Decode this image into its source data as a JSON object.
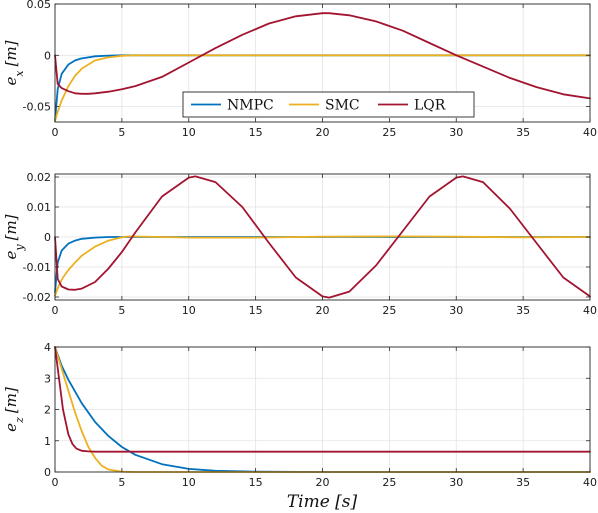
{
  "figure": {
    "xlabel": "Time [s]",
    "colors": {
      "NMPC": "#0072BD",
      "SMC": "#EDB120",
      "LQR": "#A2142F"
    }
  },
  "chart_data": [
    {
      "type": "line",
      "ylabel": "e_x [m]",
      "xlim": [
        0,
        40
      ],
      "ylim": [
        -0.065,
        0.05
      ],
      "yticks": [
        -0.05,
        0,
        0.05
      ],
      "ytick_labels": [
        "-0.05",
        "0",
        "0.05"
      ],
      "xticks": [
        0,
        5,
        10,
        15,
        20,
        25,
        30,
        35,
        40
      ],
      "grid": true,
      "legend": {
        "position": "bottom-center",
        "entries": [
          "NMPC",
          "SMC",
          "LQR"
        ]
      },
      "series": [
        {
          "name": "NMPC",
          "x": [
            0,
            0.2,
            0.5,
            1,
            1.5,
            2,
            3,
            4,
            5,
            40
          ],
          "y": [
            -0.064,
            -0.033,
            -0.018,
            -0.009,
            -0.005,
            -0.003,
            -0.001,
            -0.0003,
            0,
            0
          ]
        },
        {
          "name": "SMC",
          "x": [
            0,
            0.2,
            0.5,
            1,
            1.5,
            2,
            3,
            4,
            5,
            6,
            40
          ],
          "y": [
            -0.064,
            -0.055,
            -0.044,
            -0.03,
            -0.02,
            -0.013,
            -0.005,
            -0.002,
            -0.0005,
            0,
            0
          ]
        },
        {
          "name": "LQR",
          "x": [
            0,
            0.2,
            0.5,
            1,
            1.5,
            2,
            2.5,
            3,
            4,
            5,
            6,
            8,
            10,
            12,
            14,
            16,
            18,
            20,
            20.5,
            22,
            24,
            26,
            28,
            30,
            32,
            34,
            36,
            38,
            40
          ],
          "y": [
            0,
            -0.028,
            -0.032,
            -0.035,
            -0.037,
            -0.0375,
            -0.0375,
            -0.037,
            -0.0355,
            -0.033,
            -0.03,
            -0.021,
            -0.007,
            0.007,
            0.02,
            0.031,
            0.038,
            0.041,
            0.041,
            0.039,
            0.033,
            0.024,
            0.012,
            0.0,
            -0.011,
            -0.022,
            -0.031,
            -0.038,
            -0.042
          ]
        }
      ]
    },
    {
      "type": "line",
      "ylabel": "e_y [m]",
      "xlim": [
        0,
        40
      ],
      "ylim": [
        -0.021,
        0.021
      ],
      "yticks": [
        -0.02,
        -0.01,
        0,
        0.01,
        0.02
      ],
      "ytick_labels": [
        "-0.02",
        "-0.01",
        "0",
        "0.01",
        "0.02"
      ],
      "xticks": [
        0,
        5,
        10,
        15,
        20,
        25,
        30,
        35,
        40
      ],
      "grid": true,
      "series": [
        {
          "name": "NMPC",
          "x": [
            0,
            0.2,
            0.5,
            1,
            1.5,
            2,
            3,
            4,
            5,
            40
          ],
          "y": [
            -0.0185,
            -0.0085,
            -0.0045,
            -0.0022,
            -0.0012,
            -0.0006,
            -0.0002,
            0,
            0,
            0
          ]
        },
        {
          "name": "SMC",
          "x": [
            0,
            0.3,
            0.6,
            1,
            1.5,
            2,
            3,
            4,
            5,
            5.5,
            8,
            10,
            15,
            20,
            25,
            30,
            35,
            40
          ],
          "y": [
            -0.0195,
            -0.016,
            -0.0135,
            -0.011,
            -0.0085,
            -0.0062,
            -0.0032,
            -0.0012,
            -0.0001,
            0.0002,
            0,
            -0.0002,
            -0.0002,
            0.0001,
            0.0002,
            0.0001,
            -0.0001,
            0
          ]
        },
        {
          "name": "LQR",
          "x": [
            0,
            0.2,
            0.5,
            1,
            1.5,
            2,
            3,
            4,
            5,
            6,
            8,
            10,
            10.5,
            12,
            14,
            16,
            18,
            20,
            20.5,
            22,
            24,
            26,
            28,
            30,
            30.5,
            32,
            34,
            36,
            38,
            40
          ],
          "y": [
            0,
            -0.014,
            -0.0165,
            -0.0175,
            -0.0176,
            -0.0172,
            -0.015,
            -0.0105,
            -0.005,
            0.0015,
            0.0135,
            0.0198,
            0.0202,
            0.0183,
            0.01,
            -0.002,
            -0.0135,
            -0.0198,
            -0.0202,
            -0.0182,
            -0.0095,
            0.002,
            0.0135,
            0.0198,
            0.0202,
            0.0183,
            0.0095,
            -0.002,
            -0.0135,
            -0.0198
          ]
        }
      ]
    },
    {
      "type": "line",
      "ylabel": "e_z [m]",
      "xlim": [
        0,
        40
      ],
      "ylim": [
        0,
        4
      ],
      "yticks": [
        0,
        1,
        2,
        3,
        4
      ],
      "ytick_labels": [
        "0",
        "1",
        "2",
        "3",
        "4"
      ],
      "xticks": [
        0,
        5,
        10,
        15,
        20,
        25,
        30,
        35,
        40
      ],
      "grid": true,
      "series": [
        {
          "name": "NMPC",
          "x": [
            0,
            0.5,
            1,
            2,
            3,
            4,
            5,
            6,
            8,
            10,
            12,
            15,
            20,
            40
          ],
          "y": [
            4,
            3.4,
            2.95,
            2.2,
            1.6,
            1.15,
            0.8,
            0.55,
            0.25,
            0.1,
            0.04,
            0.01,
            0,
            0
          ]
        },
        {
          "name": "SMC",
          "x": [
            0,
            0.5,
            1,
            1.5,
            2,
            2.5,
            3,
            3.5,
            4,
            5,
            6,
            8,
            40
          ],
          "y": [
            4,
            3.3,
            2.6,
            1.9,
            1.3,
            0.8,
            0.45,
            0.2,
            0.08,
            0.01,
            0,
            0,
            0
          ]
        },
        {
          "name": "LQR",
          "x": [
            0,
            0.3,
            0.6,
            1,
            1.3,
            1.6,
            2,
            2.5,
            3,
            4,
            40
          ],
          "y": [
            4,
            3.0,
            2.0,
            1.2,
            0.9,
            0.75,
            0.68,
            0.66,
            0.65,
            0.65,
            0.65
          ]
        }
      ]
    }
  ]
}
